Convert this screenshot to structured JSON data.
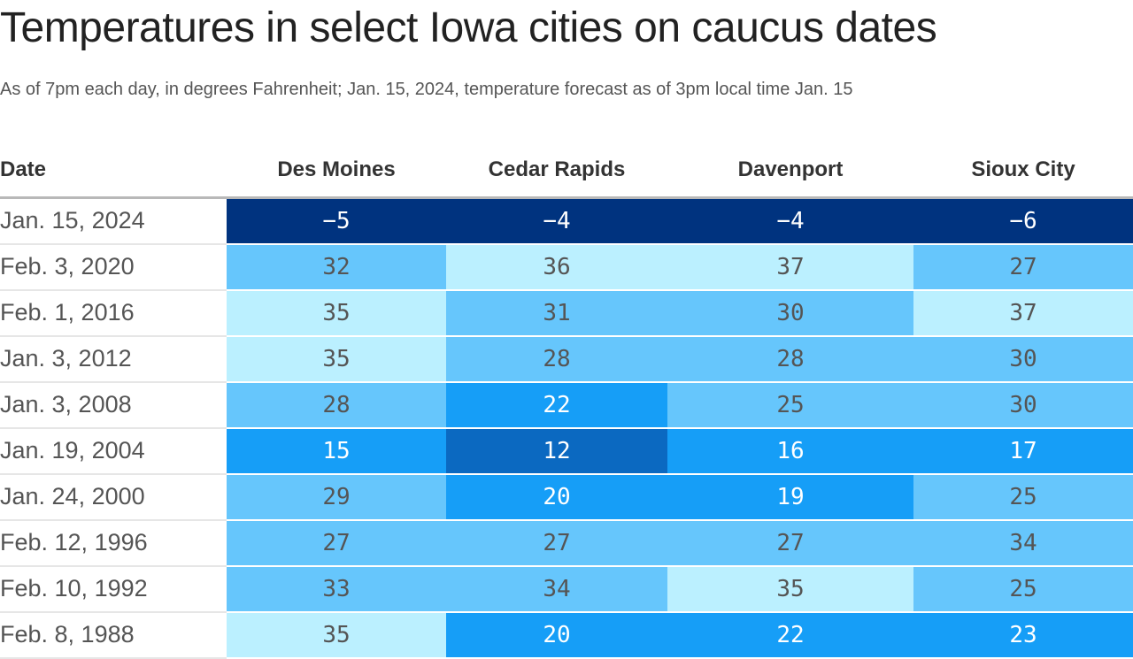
{
  "title": "Temperatures in select Iowa cities on caucus dates",
  "subtitle": "As of 7pm each day, in degrees Fahrenheit; Jan. 15, 2024, temperature forecast as of 3pm local time Jan. 15",
  "colors": {
    "lt_0": "#00337f",
    "0_to_9": "#0055a8",
    "10_to_14": "#0b69c1",
    "15_to_24": "#169ef7",
    "25_to_34": "#66c6fc",
    "35_plus": "#bbf0ff",
    "dark_text": "#ffffff",
    "light_text": "#555555"
  },
  "chart_data": {
    "type": "heatmap",
    "title": "Temperatures in select Iowa cities on caucus dates",
    "subtitle": "As of 7pm each day, in degrees Fahrenheit; Jan. 15, 2024, temperature forecast as of 3pm local time Jan. 15",
    "row_header": "Date",
    "columns": [
      "Des Moines",
      "Cedar Rapids",
      "Davenport",
      "Sioux City"
    ],
    "rows": [
      {
        "date": "Jan. 15, 2024",
        "values": [
          -5,
          -4,
          -4,
          -6
        ]
      },
      {
        "date": "Feb. 3, 2020",
        "values": [
          32,
          36,
          37,
          27
        ]
      },
      {
        "date": "Feb. 1, 2016",
        "values": [
          35,
          31,
          30,
          37
        ]
      },
      {
        "date": "Jan. 3, 2012",
        "values": [
          35,
          28,
          28,
          30
        ]
      },
      {
        "date": "Jan. 3, 2008",
        "values": [
          28,
          22,
          25,
          30
        ]
      },
      {
        "date": "Jan. 19, 2004",
        "values": [
          15,
          12,
          16,
          17
        ]
      },
      {
        "date": "Jan. 24, 2000",
        "values": [
          29,
          20,
          19,
          25
        ]
      },
      {
        "date": "Feb. 12, 1996",
        "values": [
          27,
          27,
          27,
          34
        ]
      },
      {
        "date": "Feb. 10, 1992",
        "values": [
          33,
          34,
          35,
          25
        ]
      },
      {
        "date": "Feb. 8, 1988",
        "values": [
          35,
          20,
          22,
          23
        ]
      }
    ]
  }
}
